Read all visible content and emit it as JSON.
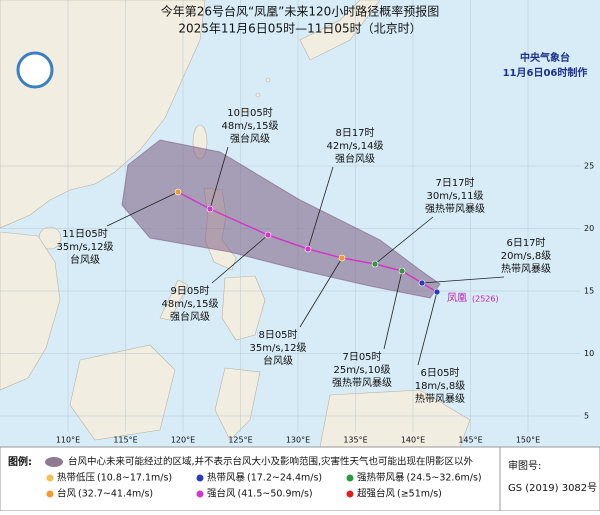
{
  "header": {
    "title": "今年第26号台风“凤凰”未来120小时路径概率预报图",
    "subtitle": "2025年11月6日05时—11日05时（北京时）"
  },
  "agency": {
    "name": "中央气象台",
    "issued": "11月6日06时制作"
  },
  "forecast_points": [
    {
      "time": "6日05时",
      "wind": "18m/s,8级",
      "level": "热带风暴级"
    },
    {
      "time": "6日17时",
      "wind": "20m/s,8级",
      "level": "热带风暴级"
    },
    {
      "time": "7日05时",
      "wind": "25m/s,10级",
      "level": "强热带风暴级"
    },
    {
      "time": "7日17时",
      "wind": "30m/s,11级",
      "level": "强热带风暴级"
    },
    {
      "time": "8日05时",
      "wind": "35m/s,12级",
      "level": "台风级"
    },
    {
      "time": "8日17时",
      "wind": "42m/s,14级",
      "level": "强台风级"
    },
    {
      "time": "9日05时",
      "wind": "48m/s,15级",
      "level": "强台风级"
    },
    {
      "time": "10日05时",
      "wind": "48m/s,15级",
      "level": "强台风级"
    },
    {
      "time": "11日05时",
      "wind": "35m/s,12级",
      "level": "台风级"
    }
  ],
  "storm": {
    "name": "凤凰",
    "code": "(2526)"
  },
  "longitudes": [
    "110°E",
    "115°E",
    "120°E",
    "125°E",
    "130°E",
    "135°E",
    "140°E",
    "145°E",
    "150°E"
  ],
  "latitudes": [
    "25",
    "20",
    "15",
    "10",
    "5"
  ],
  "legend": {
    "heading": "图例:",
    "cone_note": "台风中心未来可能经过的区域,并不表示台风大小及影响范围,灾害性天气也可能出现在阴影区以外",
    "items": [
      {
        "name": "热带低压",
        "range": "(10.8~17.1m/s)",
        "color": "#f2c14e"
      },
      {
        "name": "热带风暴",
        "range": "(17.2~24.4m/s)",
        "color": "#2d3bb8"
      },
      {
        "name": "强热带风暴",
        "range": "(24.5~32.6m/s)",
        "color": "#2e9a3e"
      },
      {
        "name": "台风",
        "range": "(32.7~41.4m/s)",
        "color": "#f29a2e"
      },
      {
        "name": "强台风",
        "range": "(41.5~50.9m/s)",
        "color": "#d535c8"
      },
      {
        "name": "超强台风",
        "range": "(≥51m/s)",
        "color": "#e02020"
      }
    ]
  },
  "approval": {
    "label": "审图号:",
    "number": "GS (2019) 3082号"
  }
}
